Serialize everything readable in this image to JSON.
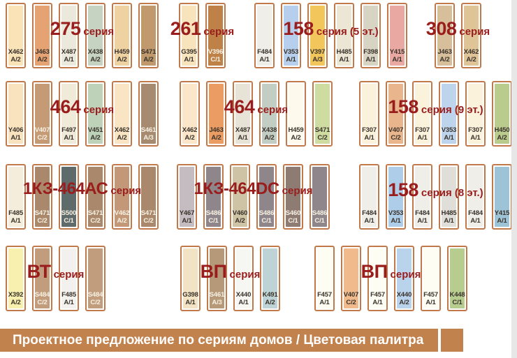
{
  "theme": {
    "background": "#ffffff",
    "series_title_color": "#9a1d1d",
    "swatch_border_color": "#c2794a",
    "swatch_label_dark": "#3a332b",
    "swatch_label_light": "#f7f1e3",
    "footer_bar_color": "#c2824e",
    "footer_text_color": "#ffffff",
    "right_margin_color": "#e7e7e7"
  },
  "footer": {
    "text": "Проектное предложение по сериям домов / Цветовая палитра"
  },
  "groups": [
    {
      "id": "s275",
      "title_main": "275",
      "title_suffix": "серия",
      "swatches": [
        {
          "code": "X462",
          "variant": "А/2",
          "color": "#fbe3b8",
          "label_style": "dark"
        },
        {
          "code": "J463",
          "variant": "А/2",
          "color": "#e5a273",
          "label_style": "dark"
        },
        {
          "code": "X487",
          "variant": "А/1",
          "color": "#ebe8dc",
          "label_style": "dark"
        },
        {
          "code": "X438",
          "variant": "А/2",
          "color": "#c6d3c3",
          "label_style": "dark"
        },
        {
          "code": "H459",
          "variant": "А/2",
          "color": "#efd2a2",
          "label_style": "dark"
        },
        {
          "code": "S471",
          "variant": "А/2",
          "color": "#c09a6c",
          "label_style": "dark"
        }
      ]
    },
    {
      "id": "s261",
      "title_main": "261",
      "title_suffix": "серия",
      "swatches": [
        {
          "code": "G395",
          "variant": "А/1",
          "color": "#f8e4bc",
          "label_style": "dark"
        },
        {
          "code": "V396",
          "variant": "С/1",
          "color": "#be8148",
          "label_style": "light"
        }
      ]
    },
    {
      "id": "s158-5",
      "title_main": "158",
      "title_suffix": "серия (5 эт.)",
      "swatches": [
        {
          "code": "F484",
          "variant": "А/1",
          "color": "#efeee9",
          "label_style": "dark"
        },
        {
          "code": "V353",
          "variant": "А/1",
          "color": "#b6cfec",
          "label_style": "dark"
        },
        {
          "code": "V397",
          "variant": "А/3",
          "color": "#f3c65c",
          "label_style": "dark"
        },
        {
          "code": "H485",
          "variant": "А/1",
          "color": "#ece6d5",
          "label_style": "dark"
        },
        {
          "code": "F398",
          "variant": "А/1",
          "color": "#d8d4c3",
          "label_style": "dark"
        },
        {
          "code": "Y415",
          "variant": "А/1",
          "color": "#e9a9a2",
          "label_style": "dark"
        }
      ]
    },
    {
      "id": "s308",
      "title_main": "308",
      "title_suffix": "серия",
      "swatches": [
        {
          "code": "J463",
          "variant": "А/2",
          "color": "#d8bf9b",
          "label_style": "dark"
        },
        {
          "code": "X462",
          "variant": "А/2",
          "color": "#dfc498",
          "label_style": "dark"
        }
      ]
    },
    {
      "id": "s464-1",
      "title_main": "464",
      "title_suffix": "серия",
      "swatches": [
        {
          "code": "Y406",
          "variant": "А/1",
          "color": "#f9e3bf",
          "label_style": "dark"
        },
        {
          "code": "V407",
          "variant": "С/2",
          "color": "#c59b76",
          "label_style": "light"
        },
        {
          "code": "F497",
          "variant": "А/1",
          "color": "#f0ebd8",
          "label_style": "dark"
        },
        {
          "code": "V451",
          "variant": "А/2",
          "color": "#bdd2b9",
          "label_style": "dark"
        },
        {
          "code": "X462",
          "variant": "А/2",
          "color": "#f9e4c3",
          "label_style": "dark"
        },
        {
          "code": "S461",
          "variant": "А/3",
          "color": "#a78b70",
          "label_style": "light"
        }
      ]
    },
    {
      "id": "s464-2",
      "title_main": "464",
      "title_suffix": "серия",
      "swatches": [
        {
          "code": "X462",
          "variant": "А/2",
          "color": "#fce6ca",
          "label_style": "dark"
        },
        {
          "code": "J463",
          "variant": "А/2",
          "color": "#eb9c63",
          "label_style": "dark"
        },
        {
          "code": "X487",
          "variant": "А/1",
          "color": "#e7e3d7",
          "label_style": "dark"
        },
        {
          "code": "X438",
          "variant": "А/2",
          "color": "#c2cec3",
          "label_style": "dark"
        },
        {
          "code": "H459",
          "variant": "А/2",
          "color": "#fdfaed",
          "label_style": "dark"
        },
        {
          "code": "S471",
          "variant": "С/2",
          "color": "#cedca2",
          "label_style": "dark"
        }
      ]
    },
    {
      "id": "s158-9",
      "title_main": "158",
      "title_suffix": "серия (9 эт.)",
      "swatches": [
        {
          "code": "F307",
          "variant": "А/1",
          "color": "#fbf2db",
          "label_style": "dark"
        },
        {
          "code": "V407",
          "variant": "С/2",
          "color": "#e9b58d",
          "label_style": "dark"
        },
        {
          "code": "F307",
          "variant": "А/1",
          "color": "#fbf2db",
          "label_style": "dark"
        },
        {
          "code": "V353",
          "variant": "А/1",
          "color": "#bdd4ec",
          "label_style": "dark"
        },
        {
          "code": "F307",
          "variant": "А/1",
          "color": "#fbf2db",
          "label_style": "dark"
        },
        {
          "code": "H450",
          "variant": "А/2",
          "color": "#b9cb8d",
          "label_style": "dark"
        }
      ]
    },
    {
      "id": "s1k3-464ac",
      "title_main": "1КЗ-464АС",
      "title_suffix": "серия",
      "swatches": [
        {
          "code": "F485",
          "variant": "А/1",
          "color": "#f5eddb",
          "label_style": "dark"
        },
        {
          "code": "S471",
          "variant": "С/2",
          "color": "#a9886b",
          "label_style": "light"
        },
        {
          "code": "S500",
          "variant": "С/1",
          "color": "#5f6a6a",
          "label_style": "light"
        },
        {
          "code": "S471",
          "variant": "С/2",
          "color": "#a9886b",
          "label_style": "light"
        },
        {
          "code": "V462",
          "variant": "А/2",
          "color": "#c29878",
          "label_style": "light"
        },
        {
          "code": "S471",
          "variant": "С/2",
          "color": "#a9886b",
          "label_style": "light"
        }
      ]
    },
    {
      "id": "s1k3-464dc",
      "title_main": "1КЗ-464DC",
      "title_suffix": "серия",
      "swatches": [
        {
          "code": "Y467",
          "variant": "А/1",
          "color": "#c4bcc1",
          "label_style": "dark"
        },
        {
          "code": "S486",
          "variant": "С/1",
          "color": "#8e868a",
          "label_style": "light"
        },
        {
          "code": "V460",
          "variant": "А/2",
          "color": "#cec3a5",
          "label_style": "dark"
        },
        {
          "code": "S486",
          "variant": "С/1",
          "color": "#8e868a",
          "label_style": "light"
        },
        {
          "code": "S460",
          "variant": "С/1",
          "color": "#8e7b72",
          "label_style": "light"
        },
        {
          "code": "S486",
          "variant": "С/1",
          "color": "#8e868a",
          "label_style": "light"
        }
      ]
    },
    {
      "id": "s158-8",
      "title_main": "158",
      "title_suffix": "серия (8 эт.)",
      "swatches": [
        {
          "code": "F484",
          "variant": "А/1",
          "color": "#efeee9",
          "label_style": "dark"
        },
        {
          "code": "V353",
          "variant": "А/1",
          "color": "#aecde9",
          "label_style": "dark"
        },
        {
          "code": "F484",
          "variant": "А/1",
          "color": "#efeee9",
          "label_style": "dark"
        },
        {
          "code": "H485",
          "variant": "А/1",
          "color": "#e0ded8",
          "label_style": "dark"
        },
        {
          "code": "F484",
          "variant": "А/1",
          "color": "#efeee9",
          "label_style": "dark"
        },
        {
          "code": "Y415",
          "variant": "А/1",
          "color": "#9dc3d6",
          "label_style": "dark"
        }
      ]
    },
    {
      "id": "svt",
      "title_main": "ВТ",
      "title_suffix": "серия",
      "swatches": [
        {
          "code": "X392",
          "variant": "А/2",
          "color": "#f7f0ae",
          "label_style": "dark"
        },
        {
          "code": "S484",
          "variant": "С/2",
          "color": "#c19d7d",
          "label_style": "light"
        },
        {
          "code": "F485",
          "variant": "А/1",
          "color": "#f3f1ed",
          "label_style": "dark"
        },
        {
          "code": "S484",
          "variant": "С/2",
          "color": "#c19d7d",
          "label_style": "light"
        }
      ]
    },
    {
      "id": "svp-1",
      "title_main": "ВП",
      "title_suffix": "серия",
      "swatches": [
        {
          "code": "G398",
          "variant": "А/1",
          "color": "#f3e3c5",
          "label_style": "dark"
        },
        {
          "code": "S461",
          "variant": "А/3",
          "color": "#b59979",
          "label_style": "light"
        },
        {
          "code": "X440",
          "variant": "А/1",
          "color": "#f6f6f3",
          "label_style": "dark"
        },
        {
          "code": "K491",
          "variant": "А/2",
          "color": "#bed3d5",
          "label_style": "dark"
        }
      ]
    },
    {
      "id": "svp-2",
      "title_main": "ВП",
      "title_suffix": "серия",
      "swatches": [
        {
          "code": "F457",
          "variant": "А/1",
          "color": "#fefdf3",
          "label_style": "dark"
        },
        {
          "code": "V407",
          "variant": "С/2",
          "color": "#f0ba8d",
          "label_style": "dark"
        },
        {
          "code": "F457",
          "variant": "А/1",
          "color": "#fefdf3",
          "label_style": "dark"
        },
        {
          "code": "X440",
          "variant": "А/2",
          "color": "#b9d3ed",
          "label_style": "dark"
        },
        {
          "code": "F457",
          "variant": "А/1",
          "color": "#fefdf3",
          "label_style": "dark"
        },
        {
          "code": "K448",
          "variant": "С/1",
          "color": "#b7cd8f",
          "label_style": "dark"
        }
      ]
    }
  ]
}
